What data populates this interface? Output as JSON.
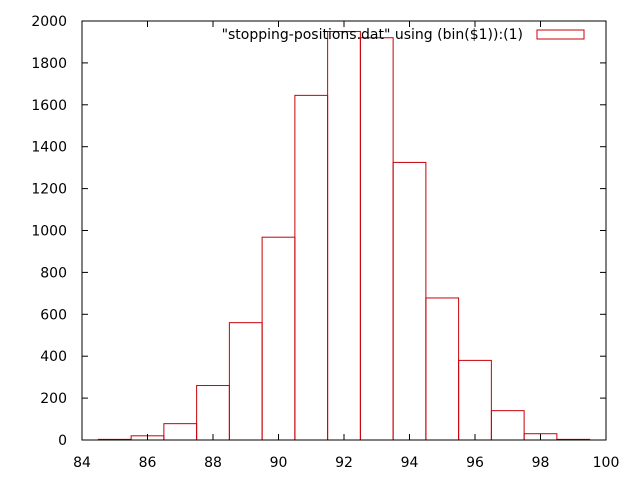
{
  "chart_data": {
    "type": "bar",
    "style": "histogram-steps",
    "x": [
      85,
      86,
      87,
      88,
      89,
      90,
      91,
      92,
      93,
      94,
      95,
      96,
      97,
      98,
      99
    ],
    "values": [
      3,
      20,
      78,
      260,
      560,
      968,
      1645,
      1950,
      1920,
      1325,
      678,
      380,
      140,
      30,
      3
    ],
    "bin_width": 1,
    "series": [
      {
        "name": "\"stopping-positions.dat\" using (bin($1)):(1)",
        "values": [
          3,
          20,
          78,
          260,
          560,
          968,
          1645,
          1950,
          1920,
          1325,
          678,
          380,
          140,
          30,
          3
        ]
      }
    ],
    "xlim": [
      84,
      100
    ],
    "ylim": [
      0,
      2000
    ],
    "xticks": [
      "84",
      "86",
      "88",
      "90",
      "92",
      "94",
      "96",
      "98",
      "100"
    ],
    "yticks": [
      "0",
      "200",
      "400",
      "600",
      "800",
      "1000",
      "1200",
      "1400",
      "1600",
      "1800",
      "2000"
    ],
    "legend_position": "top-right",
    "grid": false,
    "colors": {
      "series": "#c8000a",
      "axes": "#000000"
    }
  }
}
